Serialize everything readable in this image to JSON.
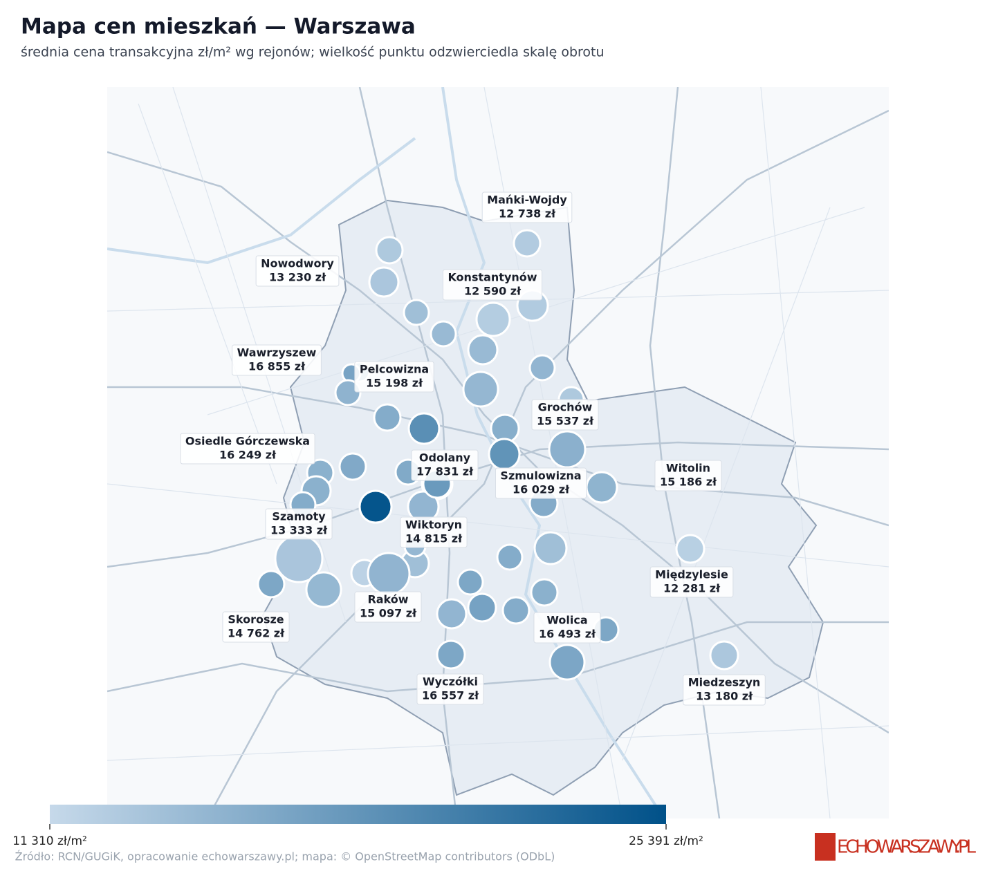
{
  "chart_data": {
    "type": "bubble-map",
    "title": "Mapa cen mieszkań — Warszawa",
    "subtitle": "średnia cena transakcyjna zł/m² wg rejonów; wielkość punktu odzwierciedla skalę obrotu",
    "districts": [
      {
        "name": "Mańki-Wojdy",
        "value": 12738,
        "value_label": "12 738 zł"
      },
      {
        "name": "Nowodwory",
        "value": 13230,
        "value_label": "13 230 zł"
      },
      {
        "name": "Konstantynów",
        "value": 12590,
        "value_label": "12 590 zł"
      },
      {
        "name": "Wawrzyszew",
        "value": 16855,
        "value_label": "16 855 zł"
      },
      {
        "name": "Pelcowizna",
        "value": 15198,
        "value_label": "15 198 zł"
      },
      {
        "name": "Grochów",
        "value": 15537,
        "value_label": "15 537 zł"
      },
      {
        "name": "Osiedle Górczewska",
        "value": 16249,
        "value_label": "16 249 zł"
      },
      {
        "name": "Odolany",
        "value": 17831,
        "value_label": "17 831 zł"
      },
      {
        "name": "Szmulowizna",
        "value": 16029,
        "value_label": "16 029 zł"
      },
      {
        "name": "Witolin",
        "value": 15186,
        "value_label": "15 186 zł"
      },
      {
        "name": "Szamoty",
        "value": 13333,
        "value_label": "13 333 zł"
      },
      {
        "name": "Wiktoryn",
        "value": 14815,
        "value_label": "14 815 zł"
      },
      {
        "name": "Międzylesie",
        "value": 12281,
        "value_label": "12 281 zł"
      },
      {
        "name": "Skorosze",
        "value": 14762,
        "value_label": "14 762 zł"
      },
      {
        "name": "Raków",
        "value": 15097,
        "value_label": "15 097 zł"
      },
      {
        "name": "Wolica",
        "value": 16493,
        "value_label": "16 493 zł"
      },
      {
        "name": "Wyczółki",
        "value": 16557,
        "value_label": "16 557 zł"
      },
      {
        "name": "Miedzeszyn",
        "value": 13180,
        "value_label": "13 180 zł"
      }
    ],
    "points": [
      13000,
      14000,
      14500,
      12800,
      14500,
      15000,
      14800,
      15500,
      16000,
      19000,
      15800,
      18500,
      13000,
      15500,
      15500,
      16000,
      16200,
      16500,
      25000,
      16500,
      12000,
      14000,
      16000,
      14000,
      16500,
      15500,
      15000,
      17000,
      16000,
      16500,
      15000
    ],
    "colorbar": {
      "range": [
        11310,
        25391
      ],
      "colors": [
        "#c6d9ea",
        "#005189"
      ],
      "ticks": [
        {
          "value": 11310,
          "label": "11 310 zł/m²"
        },
        {
          "value": 25391,
          "label": "25 391 zł/m²"
        }
      ]
    },
    "source": "Źródło: RCN/GUGiK, opracowanie echowarszawy.pl; mapa: © OpenStreetMap contributors (ODbL)",
    "logo": "ECHOWARSZAWY.PL"
  }
}
